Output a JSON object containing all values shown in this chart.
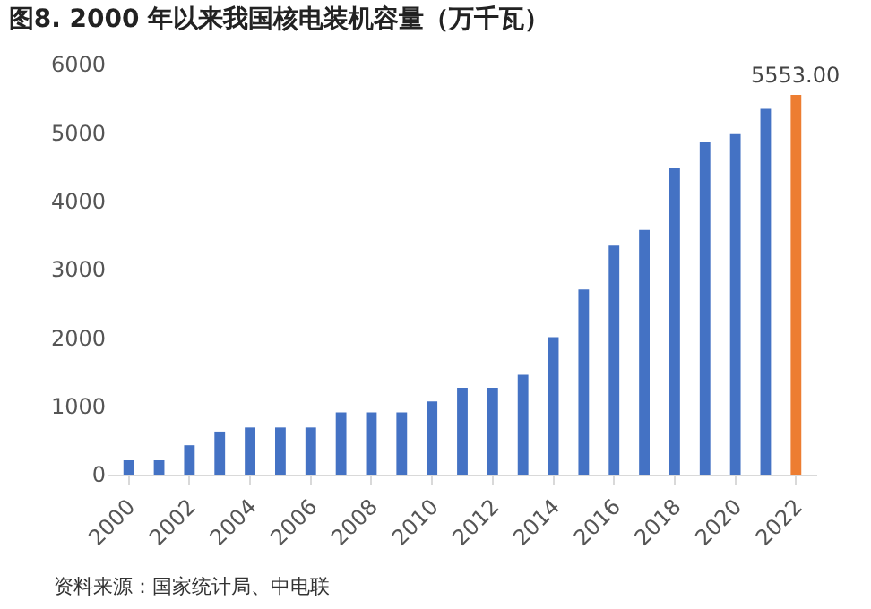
{
  "chart_data": {
    "type": "bar",
    "title": "图8. 2000 年以来我国核电装机容量（万千瓦）",
    "categories": [
      "2000",
      null,
      "2002",
      null,
      "2004",
      null,
      "2006",
      null,
      "2008",
      null,
      "2010",
      null,
      "2012",
      null,
      "2014",
      null,
      "2016",
      null,
      "2018",
      null,
      "2020",
      null,
      "2022"
    ],
    "values": [
      210,
      210,
      430,
      630,
      690,
      690,
      690,
      910,
      910,
      910,
      1070,
      1270,
      1270,
      1460,
      2010,
      2710,
      3350,
      3580,
      4480,
      4870,
      4980,
      5350,
      5553
    ],
    "colors": [
      "#4472c4",
      "#4472c4",
      "#4472c4",
      "#4472c4",
      "#4472c4",
      "#4472c4",
      "#4472c4",
      "#4472c4",
      "#4472c4",
      "#4472c4",
      "#4472c4",
      "#4472c4",
      "#4472c4",
      "#4472c4",
      "#4472c4",
      "#4472c4",
      "#4472c4",
      "#4472c4",
      "#4472c4",
      "#4472c4",
      "#4472c4",
      "#4472c4",
      "#ed7d31"
    ],
    "value_labels": [
      null,
      null,
      null,
      null,
      null,
      null,
      null,
      null,
      null,
      null,
      null,
      null,
      null,
      null,
      null,
      null,
      null,
      null,
      null,
      null,
      null,
      null,
      "5553.00"
    ],
    "ylim": [
      0,
      6000
    ],
    "yticks": [
      0,
      1000,
      2000,
      3000,
      4000,
      5000,
      6000
    ],
    "grid": false,
    "annotations": [
      "资料来源：国家统计局、中电联"
    ]
  }
}
